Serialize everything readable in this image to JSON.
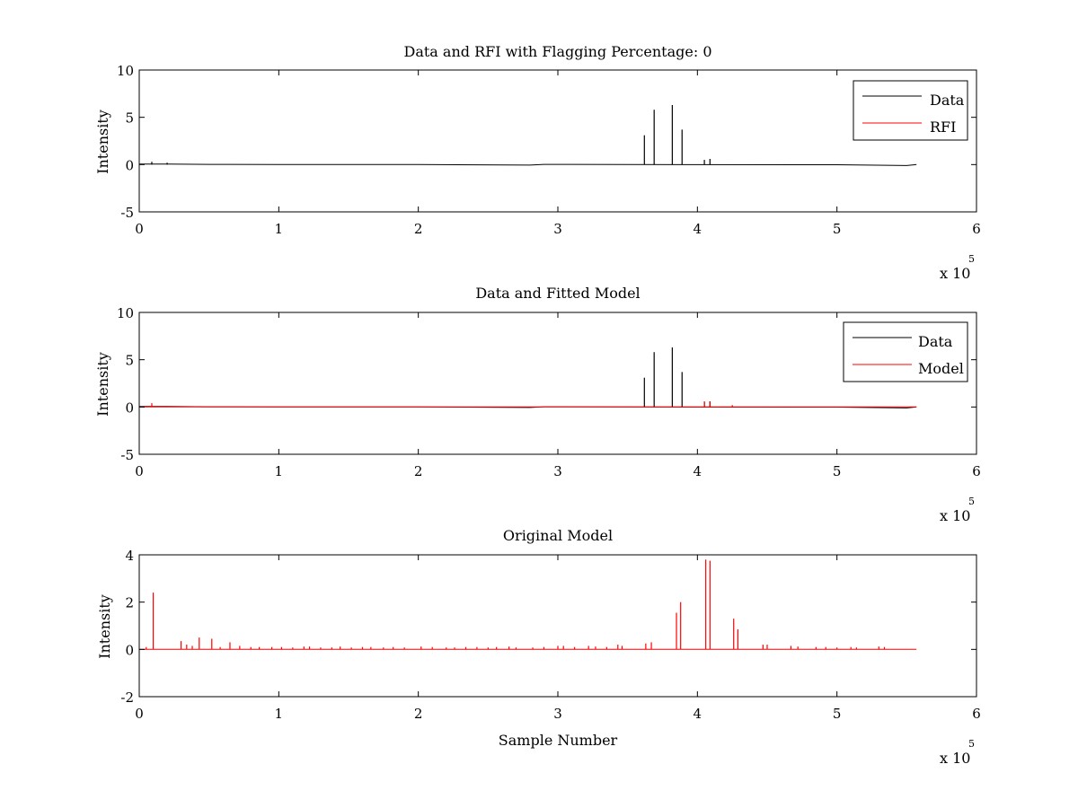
{
  "window": {
    "background": "#ffffff"
  },
  "chart_data": [
    {
      "type": "line",
      "title": "Data and RFI with Flagging Percentage: 0",
      "xlabel": "",
      "ylabel": "Intensity",
      "xlim": [
        0,
        6
      ],
      "ylim": [
        -5,
        10
      ],
      "xticks": [
        "0",
        "1",
        "2",
        "3",
        "4",
        "5",
        "6"
      ],
      "yticks": [
        "-5",
        "0",
        "5",
        "10"
      ],
      "x_multiplier": {
        "base": "x 10",
        "exponent": "5"
      },
      "grid": false,
      "legend": {
        "placement": "top-right",
        "entries": [
          "Data",
          "RFI"
        ]
      },
      "series": [
        {
          "name": "Data",
          "color": "#000000",
          "baseline": [
            [
              0.0,
              0.05
            ],
            [
              0.2,
              0.05
            ],
            [
              0.5,
              0.02
            ],
            [
              1.0,
              0.0
            ],
            [
              2.0,
              0.0
            ],
            [
              2.8,
              -0.05
            ],
            [
              2.9,
              0.02
            ],
            [
              3.5,
              0.0
            ],
            [
              5.0,
              -0.02
            ],
            [
              5.5,
              -0.1
            ],
            [
              5.57,
              0.0
            ]
          ],
          "spikes": [
            [
              3.62,
              3.1
            ],
            [
              3.69,
              5.8
            ],
            [
              3.82,
              6.3
            ],
            [
              3.89,
              3.7
            ],
            [
              4.05,
              0.5
            ],
            [
              4.09,
              0.6
            ],
            [
              0.09,
              0.3
            ],
            [
              0.2,
              0.2
            ]
          ]
        },
        {
          "name": "RFI",
          "color": "#ff0000",
          "baseline": [],
          "spikes": []
        }
      ]
    },
    {
      "type": "line",
      "title": "Data and Fitted Model",
      "xlabel": "",
      "ylabel": "Intensity",
      "xlim": [
        0,
        6
      ],
      "ylim": [
        -5,
        10
      ],
      "xticks": [
        "0",
        "1",
        "2",
        "3",
        "4",
        "5",
        "6"
      ],
      "yticks": [
        "-5",
        "0",
        "5",
        "10"
      ],
      "x_multiplier": {
        "base": "x 10",
        "exponent": "5"
      },
      "grid": false,
      "legend": {
        "placement": "top-right",
        "entries": [
          "Data",
          "Model"
        ]
      },
      "series": [
        {
          "name": "Data",
          "color": "#000000",
          "baseline": [
            [
              0.0,
              0.05
            ],
            [
              0.2,
              0.05
            ],
            [
              0.5,
              0.02
            ],
            [
              1.0,
              0.0
            ],
            [
              2.0,
              0.0
            ],
            [
              2.8,
              -0.05
            ],
            [
              2.9,
              0.02
            ],
            [
              3.5,
              0.0
            ],
            [
              5.0,
              -0.02
            ],
            [
              5.5,
              -0.1
            ],
            [
              5.57,
              0.0
            ]
          ],
          "spikes": [
            [
              3.62,
              3.1
            ],
            [
              3.69,
              5.8
            ],
            [
              3.82,
              6.3
            ],
            [
              3.89,
              3.7
            ],
            [
              4.05,
              0.5
            ],
            [
              4.09,
              0.6
            ]
          ]
        },
        {
          "name": "Model",
          "color": "#ff0000",
          "baseline": [
            [
              0.0,
              0.0
            ],
            [
              5.57,
              0.0
            ]
          ],
          "spikes": [
            [
              0.09,
              0.4
            ],
            [
              4.05,
              0.6
            ],
            [
              4.09,
              0.6
            ],
            [
              4.25,
              0.2
            ]
          ]
        }
      ]
    },
    {
      "type": "line",
      "title": "Original Model",
      "xlabel": "Sample Number",
      "ylabel": "Intensity",
      "xlim": [
        0,
        6
      ],
      "ylim": [
        -2,
        4
      ],
      "xticks": [
        "0",
        "1",
        "2",
        "3",
        "4",
        "5",
        "6"
      ],
      "yticks": [
        "-2",
        "0",
        "2",
        "4"
      ],
      "x_multiplier": {
        "base": "x 10",
        "exponent": "5"
      },
      "grid": false,
      "legend": null,
      "series": [
        {
          "name": "",
          "color": "#ff0000",
          "baseline": [
            [
              0.0,
              0.0
            ],
            [
              5.57,
              0.0
            ]
          ],
          "spikes": [
            [
              0.05,
              0.1
            ],
            [
              0.1,
              2.4
            ],
            [
              0.3,
              0.35
            ],
            [
              0.34,
              0.2
            ],
            [
              0.38,
              0.15
            ],
            [
              0.43,
              0.5
            ],
            [
              0.52,
              0.45
            ],
            [
              0.58,
              0.1
            ],
            [
              0.65,
              0.3
            ],
            [
              0.72,
              0.15
            ],
            [
              0.8,
              0.1
            ],
            [
              0.86,
              0.1
            ],
            [
              0.95,
              0.1
            ],
            [
              1.02,
              0.1
            ],
            [
              1.1,
              0.08
            ],
            [
              1.18,
              0.12
            ],
            [
              1.22,
              0.12
            ],
            [
              1.3,
              0.08
            ],
            [
              1.38,
              0.08
            ],
            [
              1.44,
              0.12
            ],
            [
              1.52,
              0.08
            ],
            [
              1.6,
              0.1
            ],
            [
              1.66,
              0.1
            ],
            [
              1.75,
              0.08
            ],
            [
              1.82,
              0.1
            ],
            [
              1.9,
              0.08
            ],
            [
              2.02,
              0.12
            ],
            [
              2.1,
              0.1
            ],
            [
              2.2,
              0.08
            ],
            [
              2.26,
              0.08
            ],
            [
              2.34,
              0.1
            ],
            [
              2.42,
              0.1
            ],
            [
              2.5,
              0.08
            ],
            [
              2.56,
              0.1
            ],
            [
              2.65,
              0.12
            ],
            [
              2.7,
              0.08
            ],
            [
              2.82,
              0.08
            ],
            [
              2.9,
              0.1
            ],
            [
              3.0,
              0.15
            ],
            [
              3.04,
              0.15
            ],
            [
              3.12,
              0.1
            ],
            [
              3.22,
              0.15
            ],
            [
              3.27,
              0.12
            ],
            [
              3.35,
              0.1
            ],
            [
              3.43,
              0.2
            ],
            [
              3.46,
              0.15
            ],
            [
              3.63,
              0.25
            ],
            [
              3.67,
              0.3
            ],
            [
              3.85,
              1.55
            ],
            [
              3.88,
              2.0
            ],
            [
              4.06,
              3.8
            ],
            [
              4.09,
              3.75
            ],
            [
              4.26,
              1.3
            ],
            [
              4.29,
              0.85
            ],
            [
              4.47,
              0.2
            ],
            [
              4.5,
              0.2
            ],
            [
              4.67,
              0.15
            ],
            [
              4.72,
              0.12
            ],
            [
              4.85,
              0.1
            ],
            [
              4.92,
              0.1
            ],
            [
              5.0,
              0.08
            ],
            [
              5.1,
              0.1
            ],
            [
              5.14,
              0.08
            ],
            [
              5.3,
              0.12
            ],
            [
              5.34,
              0.1
            ]
          ]
        }
      ]
    }
  ]
}
